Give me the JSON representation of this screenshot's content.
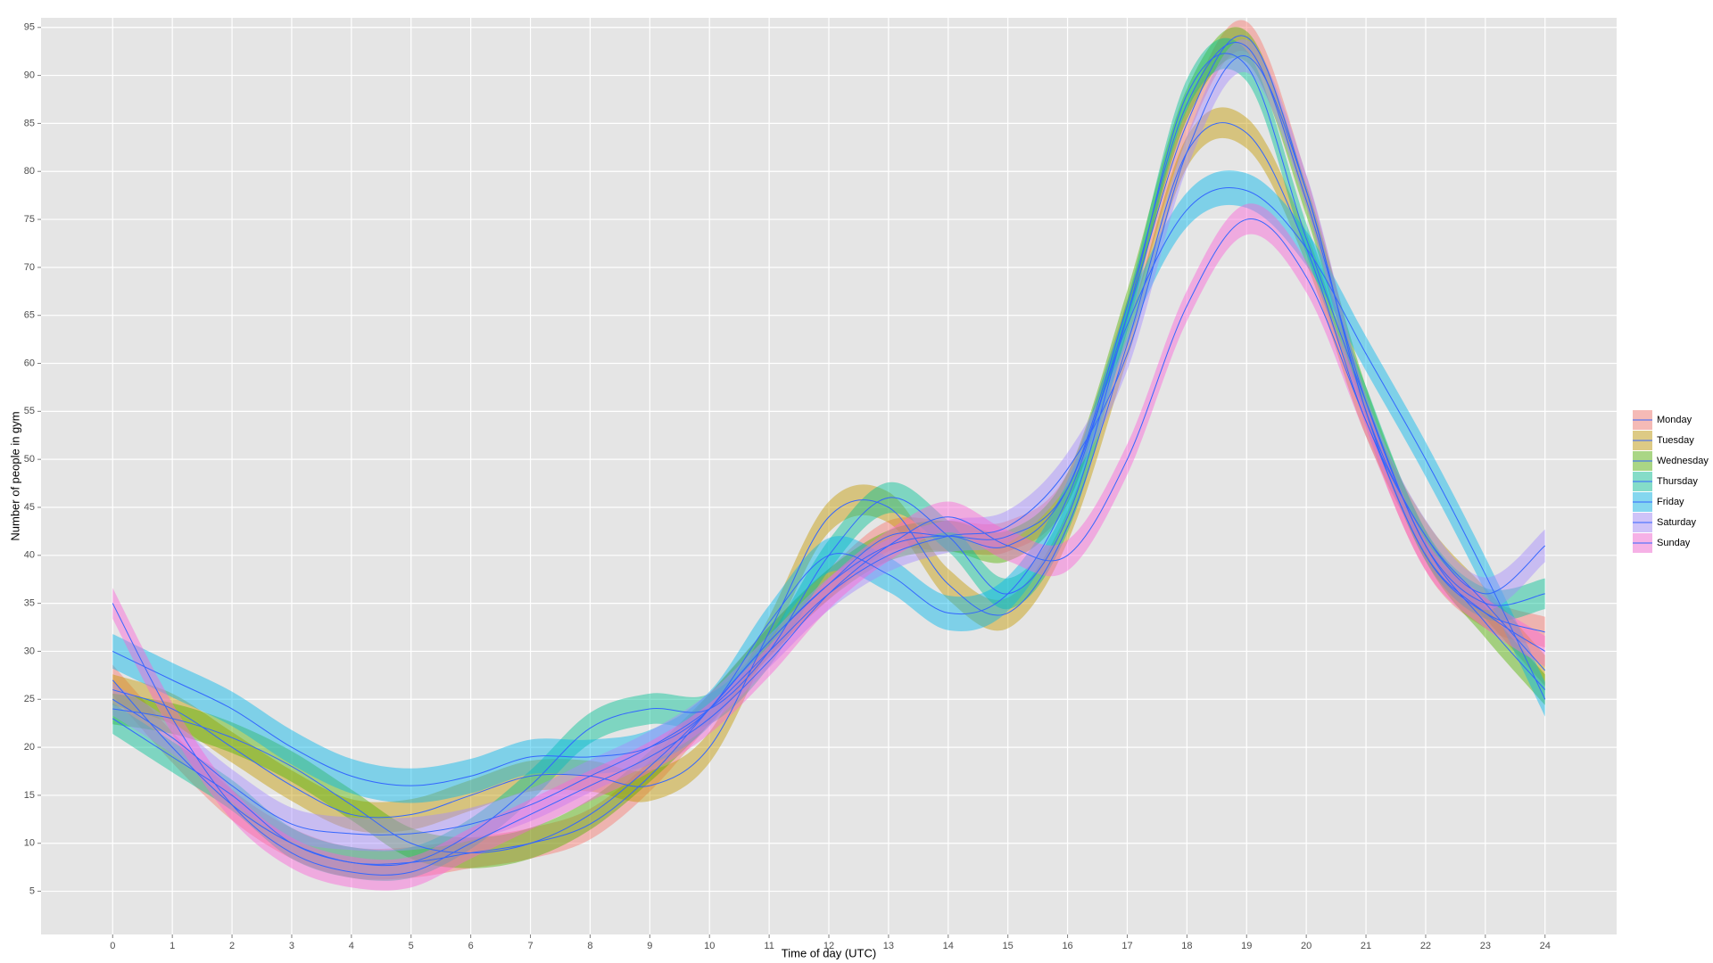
{
  "chart_data": {
    "type": "smooth",
    "x_label": "Time of day (UTC)",
    "y_label": "Number of people in gym",
    "x": [
      0,
      1,
      2,
      3,
      4,
      5,
      6,
      7,
      8,
      9,
      10,
      11,
      12,
      13,
      14,
      15,
      16,
      17,
      18,
      19,
      20,
      21,
      22,
      23,
      24
    ],
    "xlim": [
      -1.2,
      25.2
    ],
    "xticks": [
      0,
      1,
      2,
      3,
      4,
      5,
      6,
      7,
      8,
      9,
      10,
      11,
      12,
      13,
      14,
      15,
      16,
      17,
      18,
      19,
      20,
      21,
      22,
      23,
      24
    ],
    "ylim": [
      0.5,
      96
    ],
    "yticks": [
      5,
      10,
      15,
      20,
      25,
      30,
      35,
      40,
      45,
      50,
      55,
      60,
      65,
      70,
      75,
      80,
      85,
      90,
      95
    ],
    "grid": true,
    "legend": "right",
    "line_color": "#3366ff",
    "series": [
      {
        "name": "Monday",
        "color": "#f8766d",
        "band": 1.6,
        "values": [
          27,
          20,
          14,
          10,
          8,
          8,
          9,
          10,
          12,
          17,
          24,
          31,
          37,
          42,
          42,
          42,
          47,
          65,
          85,
          94,
          78,
          55,
          40,
          34,
          32
        ]
      },
      {
        "name": "Tuesday",
        "color": "#c49a00",
        "band": 1.6,
        "values": [
          26,
          24,
          20,
          16,
          13,
          13,
          15,
          17,
          17,
          16,
          20,
          32,
          44,
          45,
          37,
          34,
          43,
          62,
          82,
          84,
          72,
          54,
          42,
          35,
          28
        ]
      },
      {
        "name": "Wednesday",
        "color": "#53b400",
        "band": 1.6,
        "values": [
          24,
          23,
          21,
          18,
          14,
          10,
          9,
          10,
          13,
          18,
          24,
          31,
          37,
          41,
          42,
          41,
          47,
          66,
          87,
          93,
          77,
          56,
          41,
          33,
          26
        ]
      },
      {
        "name": "Thursday",
        "color": "#00c094",
        "band": 1.6,
        "values": [
          23,
          19,
          15,
          10,
          8,
          8,
          11,
          16,
          22,
          24,
          24,
          30,
          40,
          46,
          42,
          36,
          44,
          65,
          88,
          91,
          73,
          56,
          41,
          35,
          36
        ]
      },
      {
        "name": "Friday",
        "color": "#00b6eb",
        "band": 1.8,
        "values": [
          30,
          27,
          24,
          20,
          17,
          16,
          17,
          19,
          19,
          20,
          24,
          33,
          40,
          38,
          34,
          36,
          46,
          64,
          76,
          78,
          72,
          61,
          50,
          38,
          25
        ]
      },
      {
        "name": "Saturday",
        "color": "#a58aff",
        "band": 1.7,
        "values": [
          25,
          21,
          16,
          12,
          11,
          11,
          12,
          14,
          17,
          20,
          24,
          30,
          36,
          40,
          42,
          43,
          49,
          61,
          82,
          92,
          78,
          55,
          42,
          36,
          41
        ]
      },
      {
        "name": "Sunday",
        "color": "#fb61d7",
        "band": 1.6,
        "values": [
          35,
          23,
          14,
          9,
          7,
          7,
          10,
          13,
          16,
          19,
          23,
          29,
          36,
          41,
          44,
          41,
          40,
          50,
          66,
          75,
          69,
          54,
          40,
          34,
          30
        ]
      }
    ]
  }
}
